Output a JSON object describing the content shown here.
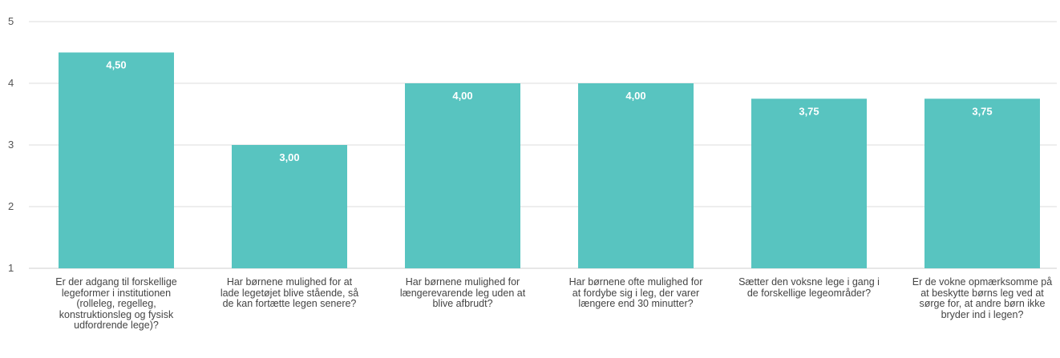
{
  "chart_data": {
    "type": "bar",
    "categories": [
      "Er der adgang til forskellige legeformer i institutionen (rolleleg, regelleg, konstruktionsleg og fysisk udfordrende lege)?",
      "Har børnene mulighed for at lade legetøjet blive stående, så de kan fortætte legen senere?",
      "Har børnene mulighed for længerevarende leg uden at blive afbrudt?",
      "Har børnene ofte mulighed for at fordybe sig i leg, der varer længere end 30 minutter?",
      "Sætter den voksne lege i gang i de forskellige legeområder?",
      "Er de vokne opmærksomme på at beskytte børns leg ved at sørge for, at andre børn ikke bryder ind i legen?"
    ],
    "values": [
      4.5,
      3.0,
      4.0,
      4.0,
      3.75,
      3.75
    ],
    "value_labels": [
      "4,50",
      "3,00",
      "4,00",
      "4,00",
      "3,75",
      "3,75"
    ],
    "y_ticks": [
      "1",
      "2",
      "3",
      "4",
      "5"
    ],
    "ylim": [
      1,
      5
    ],
    "grid": true,
    "bar_color": "#58c4c0",
    "title": "",
    "xlabel": "",
    "ylabel": ""
  }
}
